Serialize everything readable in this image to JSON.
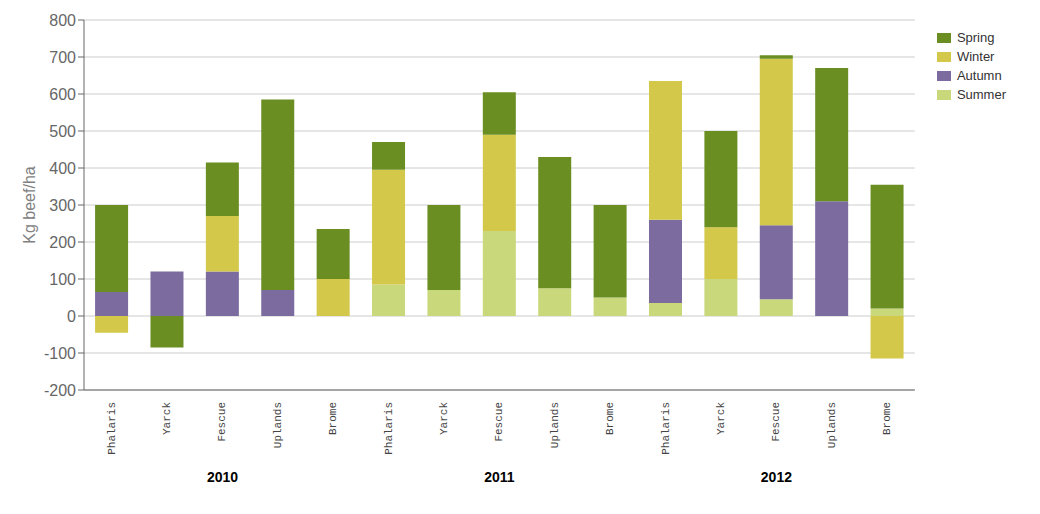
{
  "chart_data": {
    "type": "bar",
    "stacked": true,
    "ylabel": "Kg beef/ha",
    "categories": [
      "Phalaris",
      "Yarck",
      "Fescue",
      "Uplands",
      "Brome",
      "Phalaris",
      "Yarck",
      "Fescue",
      "Uplands",
      "Brome",
      "Phalaris",
      "Yarck",
      "Fescue",
      "Uplands",
      "Brome"
    ],
    "groups": [
      "2010",
      "2011",
      "2012"
    ],
    "series": [
      {
        "name": "Summer",
        "color": "#c8d87a",
        "values": [
          0,
          0,
          0,
          0,
          0,
          85,
          70,
          230,
          75,
          50,
          35,
          100,
          45,
          0,
          20
        ]
      },
      {
        "name": "Autumn",
        "color": "#7b6b9e",
        "values": [
          65,
          120,
          120,
          70,
          0,
          0,
          0,
          0,
          0,
          0,
          225,
          0,
          200,
          310,
          0
        ]
      },
      {
        "name": "Winter",
        "color": "#d4c84a",
        "values": [
          -45,
          0,
          150,
          0,
          100,
          310,
          0,
          260,
          0,
          0,
          375,
          140,
          450,
          0,
          -115
        ]
      },
      {
        "name": "Spring",
        "color": "#6b8e23",
        "values": [
          235,
          -85,
          145,
          515,
          135,
          75,
          230,
          115,
          355,
          250,
          0,
          260,
          10,
          360,
          335
        ]
      }
    ],
    "ylim": [
      -200,
      800
    ],
    "yticks": [
      -200,
      -100,
      0,
      100,
      200,
      300,
      400,
      500,
      600,
      700,
      800
    ],
    "grid": true,
    "legend": "upper right"
  }
}
